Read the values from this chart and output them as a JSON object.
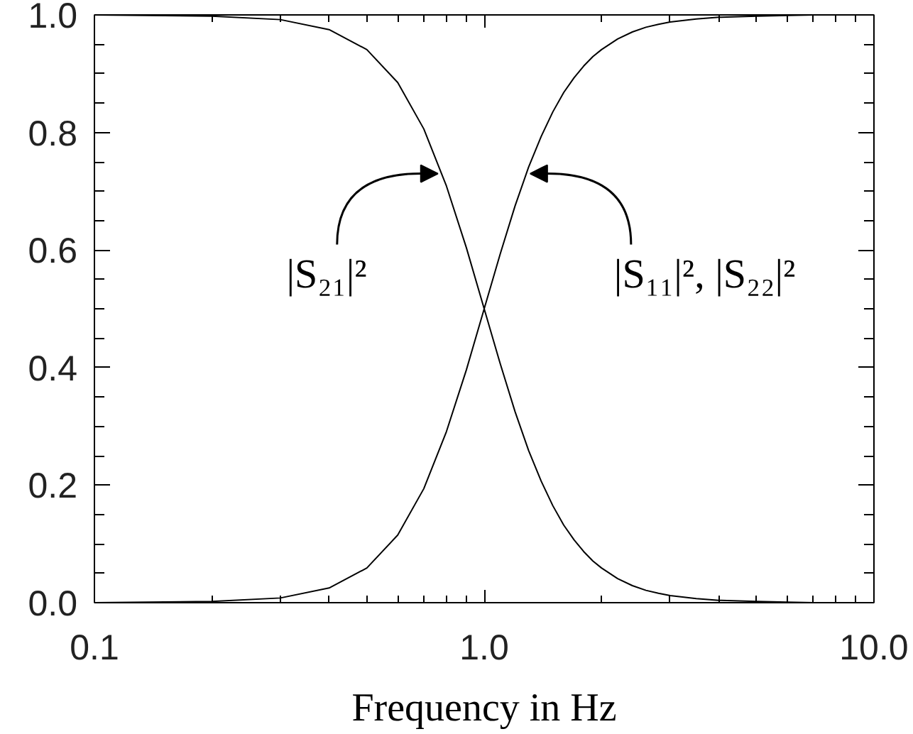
{
  "chart_data": {
    "type": "line",
    "xlabel": "Frequency in Hz",
    "x": [
      0.1,
      0.2,
      0.3,
      0.4,
      0.5,
      0.6,
      0.7,
      0.8,
      0.9,
      1.0,
      1.1,
      1.2,
      1.3,
      1.4,
      1.5,
      1.6,
      1.7,
      1.8,
      1.9,
      2.0,
      2.2,
      2.4,
      2.6,
      2.8,
      3.0,
      3.5,
      4.0,
      5.0,
      6.0,
      7.0,
      8.0,
      9.0,
      10.0
    ],
    "series": [
      {
        "color": "#000000",
        "values": [
          1,
          0.998,
          0.992,
          0.975,
          0.941,
          0.885,
          0.806,
          0.709,
          0.604,
          0.5,
          0.406,
          0.325,
          0.259,
          0.207,
          0.165,
          0.132,
          0.107,
          0.087,
          0.071,
          0.059,
          0.041,
          0.029,
          0.021,
          0.016,
          0.012,
          0.007,
          0.004,
          0.002,
          0.001,
          0,
          0,
          0,
          0
        ]
      },
      {
        "color": "#000000",
        "values": [
          0,
          0.002,
          0.008,
          0.025,
          0.059,
          0.115,
          0.194,
          0.291,
          0.396,
          0.5,
          0.594,
          0.675,
          0.741,
          0.793,
          0.835,
          0.868,
          0.893,
          0.913,
          0.929,
          0.941,
          0.959,
          0.971,
          0.979,
          0.984,
          0.988,
          0.993,
          0.996,
          0.998,
          0.999,
          1,
          1,
          1,
          1
        ]
      }
    ],
    "xlim": [
      0.1,
      10
    ],
    "ylim": [
      0,
      1
    ],
    "xticks": [
      0.1,
      {
        "value": 1,
        "label": "1.0"
      },
      {
        "value": 10,
        "label": "10.0"
      }
    ],
    "yticks": [
      {
        "value": 0,
        "label": "0.0"
      },
      0.2,
      0.4,
      0.6,
      0.8,
      {
        "value": 1,
        "label": "1.0"
      }
    ],
    "log": "x",
    "grid": false,
    "line_style": "solid",
    "annotations": [
      {
        "text": "|S₂₁|²",
        "x": 0.78,
        "y": 0.73
      },
      {
        "text": "|S₁₁|², |S₂₂|²",
        "x": 1.28,
        "y": 0.73
      }
    ]
  }
}
